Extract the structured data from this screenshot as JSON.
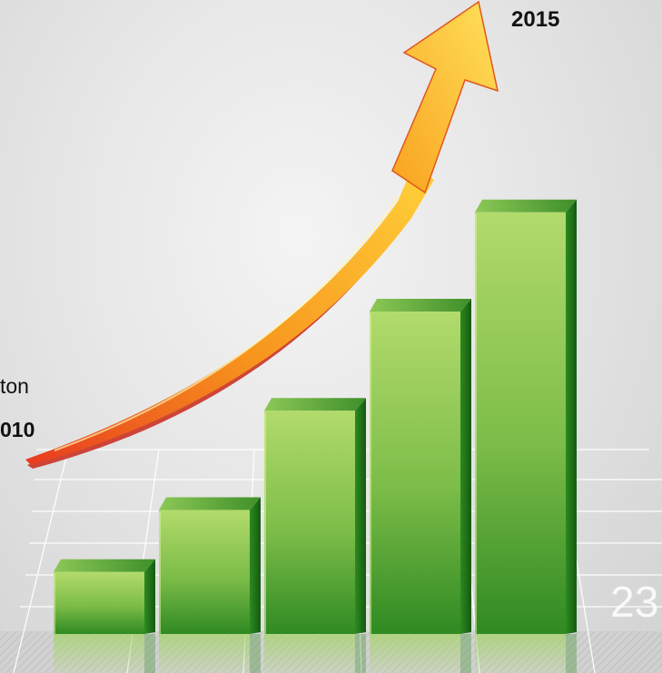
{
  "chart_data": {
    "type": "bar",
    "title": "",
    "xlabel": "",
    "ylabel": "",
    "categories": [
      "",
      "",
      "",
      "",
      ""
    ],
    "values": [
      10,
      20,
      36,
      52,
      68
    ],
    "ylim": [
      0,
      75
    ],
    "grid": true,
    "legend": "none",
    "colors": {
      "bar_light": "#b2db6c",
      "bar_mid": "#76b745",
      "bar_dark": "#2f8a22",
      "bar_top": "#5fa737",
      "bar_side": "#1f6e17",
      "arrow_light": "#ffd23a",
      "arrow_mid": "#f7941d",
      "arrow_dark": "#e83a1f"
    },
    "annotations": {
      "start_text": "ton",
      "start_year": "010",
      "end_year": "2015"
    }
  },
  "page_number": "23"
}
